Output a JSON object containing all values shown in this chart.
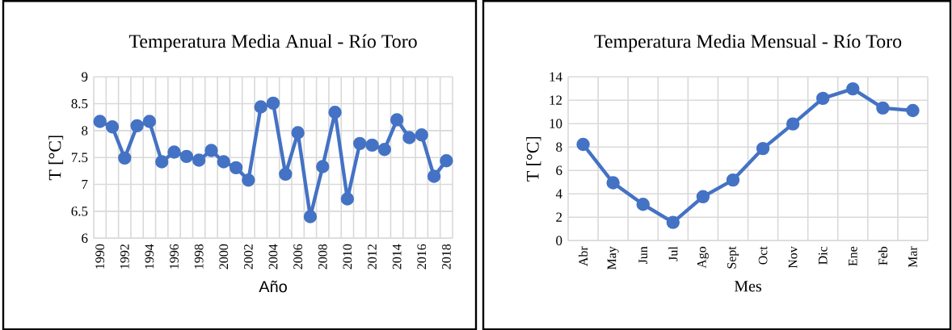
{
  "chart_data": [
    {
      "type": "line",
      "title": "Temperatura Media Anual - Río Toro",
      "xlabel": "Año",
      "ylabel": "T [°C]",
      "categories": [
        "1990",
        null,
        "1992",
        null,
        "1994",
        null,
        "1996",
        null,
        "1998",
        null,
        "2000",
        null,
        "2002",
        null,
        "2004",
        null,
        "2006",
        null,
        "2008",
        null,
        "2010",
        null,
        "2012",
        null,
        "2014",
        null,
        "2016",
        null,
        "2018"
      ],
      "series": [
        {
          "color": "#4472c4",
          "values": [
            8.17,
            8.07,
            7.49,
            8.09,
            8.17,
            7.42,
            7.6,
            7.52,
            7.45,
            7.63,
            7.42,
            7.31,
            7.08,
            8.44,
            8.51,
            7.19,
            7.96,
            6.4,
            7.33,
            8.34,
            6.73,
            7.76,
            7.73,
            7.65,
            8.2,
            7.87,
            7.92,
            7.15,
            7.44
          ]
        }
      ],
      "ylim": [
        6,
        9
      ],
      "yticks": [
        6,
        6.5,
        7,
        7.5,
        8,
        8.5,
        9
      ],
      "grid": true,
      "marker": "circle"
    },
    {
      "type": "line",
      "title": "Temperatura Media Mensual - Río Toro",
      "xlabel": "Mes",
      "ylabel": "T [°C]",
      "categories": [
        "Abr",
        "May",
        "Jun",
        "Jul",
        "Ago",
        "Sept",
        "Oct",
        "Nov",
        "Dic",
        "Ene",
        "Feb",
        "Mar"
      ],
      "series": [
        {
          "color": "#4472c4",
          "values": [
            8.22,
            4.94,
            3.1,
            1.56,
            3.75,
            5.18,
            7.87,
            9.97,
            12.16,
            12.97,
            11.33,
            11.12
          ]
        }
      ],
      "ylim": [
        0,
        14
      ],
      "yticks": [
        0,
        2,
        4,
        6,
        8,
        10,
        12,
        14
      ],
      "grid": true,
      "marker": "circle"
    }
  ]
}
